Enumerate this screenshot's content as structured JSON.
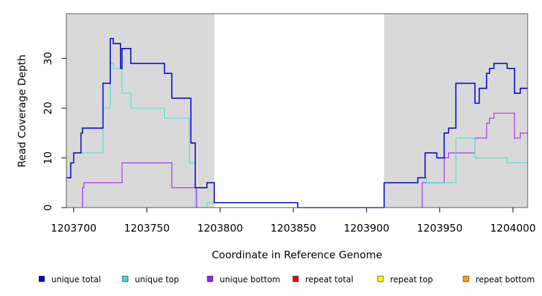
{
  "chart_data": {
    "type": "line",
    "title": "",
    "xlabel": "Coordinate in Reference Genome",
    "ylabel": "Read Coverage Depth",
    "xlim": [
      1203695,
      1204010
    ],
    "ylim": [
      0,
      39
    ],
    "x_ticks": [
      1203700,
      1203750,
      1203800,
      1203850,
      1203900,
      1203950,
      1204000
    ],
    "y_ticks": [
      0,
      10,
      20,
      30
    ],
    "shaded_regions": [
      [
        1203695,
        1203796
      ],
      [
        1203912,
        1204010
      ]
    ],
    "shade_color": "#d9d9d9",
    "grid": false,
    "legend_position": "bottom",
    "series": [
      {
        "name": "unique total",
        "color": "#0000cd",
        "points": [
          [
            1203695,
            6
          ],
          [
            1203698,
            9
          ],
          [
            1203700,
            11
          ],
          [
            1203705,
            15
          ],
          [
            1203706,
            16
          ],
          [
            1203720,
            25
          ],
          [
            1203725,
            34
          ],
          [
            1203727,
            33
          ],
          [
            1203732,
            28
          ],
          [
            1203733,
            32
          ],
          [
            1203739,
            29
          ],
          [
            1203762,
            27
          ],
          [
            1203767,
            22
          ],
          [
            1203780,
            13
          ],
          [
            1203783,
            4
          ],
          [
            1203791,
            5
          ],
          [
            1203796,
            1
          ],
          [
            1203853,
            0
          ],
          [
            1203912,
            5
          ],
          [
            1203935,
            6
          ],
          [
            1203940,
            11
          ],
          [
            1203948,
            10
          ],
          [
            1203953,
            15
          ],
          [
            1203956,
            16
          ],
          [
            1203961,
            25
          ],
          [
            1203974,
            21
          ],
          [
            1203977,
            24
          ],
          [
            1203982,
            27
          ],
          [
            1203984,
            28
          ],
          [
            1203987,
            29
          ],
          [
            1203996,
            28
          ],
          [
            1204001,
            23
          ],
          [
            1204005,
            24
          ],
          [
            1204010,
            24
          ]
        ]
      },
      {
        "name": "unique top",
        "color": "#40e0d0",
        "points": [
          [
            1203695,
            6
          ],
          [
            1203698,
            9
          ],
          [
            1203700,
            11
          ],
          [
            1203705,
            11
          ],
          [
            1203720,
            20
          ],
          [
            1203725,
            29
          ],
          [
            1203727,
            28
          ],
          [
            1203733,
            23
          ],
          [
            1203739,
            20
          ],
          [
            1203762,
            18
          ],
          [
            1203779,
            9
          ],
          [
            1203783,
            0
          ],
          [
            1203791,
            1
          ],
          [
            1203796,
            1
          ],
          [
            1203853,
            0
          ],
          [
            1203912,
            5
          ],
          [
            1203935,
            6
          ],
          [
            1203941,
            5
          ],
          [
            1203948,
            5
          ],
          [
            1203961,
            14
          ],
          [
            1203974,
            10
          ],
          [
            1203996,
            9
          ],
          [
            1204010,
            9
          ]
        ]
      },
      {
        "name": "unique bottom",
        "color": "#a020f0",
        "points": [
          [
            1203695,
            0
          ],
          [
            1203706,
            4
          ],
          [
            1203707,
            5
          ],
          [
            1203733,
            9
          ],
          [
            1203767,
            4
          ],
          [
            1203783,
            4
          ],
          [
            1203784,
            0
          ],
          [
            1203938,
            5
          ],
          [
            1203953,
            10
          ],
          [
            1203956,
            11
          ],
          [
            1203974,
            14
          ],
          [
            1203982,
            17
          ],
          [
            1203984,
            18
          ],
          [
            1203987,
            19
          ],
          [
            1204001,
            14
          ],
          [
            1204005,
            15
          ],
          [
            1204010,
            15
          ]
        ]
      },
      {
        "name": "repeat total",
        "color": "#ff0000",
        "points": [
          [
            1203695,
            0
          ],
          [
            1204010,
            0
          ]
        ]
      },
      {
        "name": "repeat top",
        "color": "#ffff00",
        "points": [
          [
            1203695,
            0
          ],
          [
            1204010,
            0
          ]
        ]
      },
      {
        "name": "repeat bottom",
        "color": "#ffa500",
        "points": [
          [
            1203695,
            0
          ],
          [
            1204010,
            0
          ]
        ]
      }
    ]
  }
}
